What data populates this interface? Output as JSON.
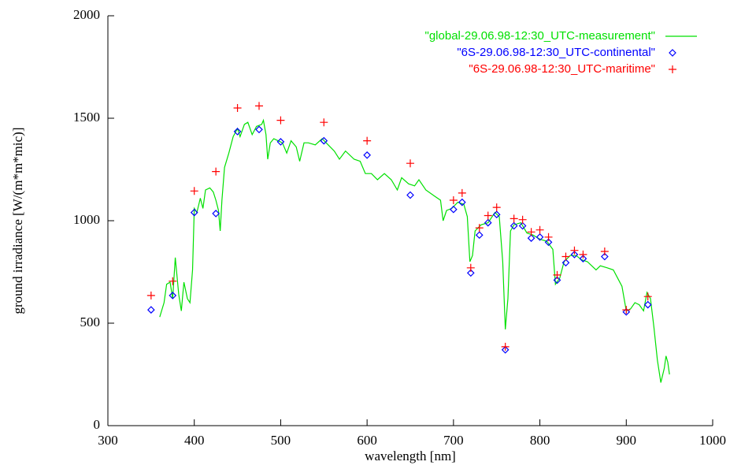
{
  "chart_data": {
    "type": "line",
    "xlabel": "wavelength [nm]",
    "ylabel": "ground irradiance [W/(m*m*mic)]",
    "xlim": [
      300,
      1000
    ],
    "xticks": [
      300,
      400,
      500,
      600,
      700,
      800,
      900,
      1000
    ],
    "ylim": [
      0,
      2000
    ],
    "yticks": [
      0,
      500,
      1000,
      1500,
      2000
    ],
    "legend": "upper right",
    "series": [
      {
        "name": "\"global-29.06.98-12:30_UTC-measurement\"",
        "color": "#00e000",
        "style": "line",
        "x": [
          360,
          365,
          368,
          372,
          375,
          378,
          382,
          385,
          388,
          392,
          395,
          398,
          400,
          403,
          407,
          410,
          413,
          418,
          422,
          425,
          428,
          430,
          432,
          435,
          440,
          445,
          450,
          453,
          458,
          462,
          467,
          472,
          478,
          480,
          483,
          485,
          488,
          492,
          497,
          502,
          507,
          512,
          518,
          522,
          527,
          532,
          540,
          548,
          555,
          562,
          568,
          575,
          585,
          592,
          598,
          605,
          612,
          620,
          628,
          635,
          640,
          648,
          655,
          660,
          668,
          678,
          685,
          688,
          692,
          698,
          705,
          712,
          716,
          719,
          722,
          725,
          732,
          740,
          748,
          753,
          757,
          760,
          763,
          766,
          770,
          778,
          785,
          792,
          800,
          808,
          815,
          818,
          823,
          828,
          835,
          842,
          848,
          855,
          860,
          865,
          870,
          878,
          885,
          890,
          895,
          900,
          905,
          910,
          915,
          920,
          924,
          928,
          932,
          936,
          940,
          944,
          946,
          948,
          950
        ],
        "values": [
          530,
          600,
          690,
          700,
          620,
          820,
          640,
          560,
          700,
          620,
          600,
          760,
          1060,
          1040,
          1110,
          1060,
          1150,
          1160,
          1140,
          1100,
          1050,
          950,
          1100,
          1260,
          1330,
          1410,
          1450,
          1410,
          1470,
          1480,
          1420,
          1460,
          1470,
          1490,
          1420,
          1300,
          1380,
          1400,
          1390,
          1380,
          1330,
          1390,
          1360,
          1290,
          1380,
          1380,
          1370,
          1400,
          1370,
          1340,
          1300,
          1340,
          1300,
          1290,
          1230,
          1230,
          1200,
          1230,
          1200,
          1150,
          1210,
          1180,
          1170,
          1200,
          1150,
          1120,
          1100,
          1000,
          1050,
          1060,
          1090,
          1080,
          1020,
          800,
          830,
          950,
          980,
          990,
          1040,
          1020,
          800,
          470,
          620,
          950,
          980,
          990,
          940,
          930,
          910,
          900,
          860,
          690,
          720,
          800,
          830,
          830,
          810,
          800,
          780,
          760,
          780,
          770,
          760,
          720,
          680,
          560,
          570,
          600,
          590,
          560,
          650,
          620,
          480,
          320,
          210,
          280,
          340,
          310,
          250
        ]
      },
      {
        "name": "\"6S-29.06.98-12:30_UTC-continental\"",
        "color": "#0000ff",
        "style": "diamond",
        "x": [
          350,
          375,
          400,
          425,
          450,
          475,
          500,
          550,
          600,
          650,
          700,
          710,
          720,
          730,
          740,
          750,
          760,
          770,
          780,
          790,
          800,
          810,
          820,
          830,
          840,
          850,
          875,
          900,
          925
        ],
        "values": [
          565,
          635,
          1040,
          1035,
          1435,
          1445,
          1385,
          1390,
          1320,
          1125,
          1055,
          1090,
          745,
          930,
          990,
          1030,
          370,
          975,
          975,
          915,
          920,
          895,
          710,
          795,
          835,
          815,
          825,
          555,
          590
        ]
      },
      {
        "name": "\"6S-29.06.98-12:30_UTC-maritime\"",
        "color": "#ff0000",
        "style": "plus",
        "x": [
          350,
          375,
          400,
          425,
          450,
          475,
          500,
          550,
          600,
          650,
          700,
          710,
          720,
          730,
          740,
          750,
          760,
          770,
          780,
          790,
          800,
          810,
          820,
          830,
          840,
          850,
          875,
          900,
          925
        ],
        "values": [
          635,
          705,
          1145,
          1240,
          1550,
          1560,
          1490,
          1480,
          1390,
          1280,
          1100,
          1135,
          770,
          965,
          1025,
          1065,
          385,
          1010,
          1005,
          945,
          955,
          920,
          735,
          825,
          855,
          835,
          850,
          565,
          630
        ]
      }
    ]
  }
}
